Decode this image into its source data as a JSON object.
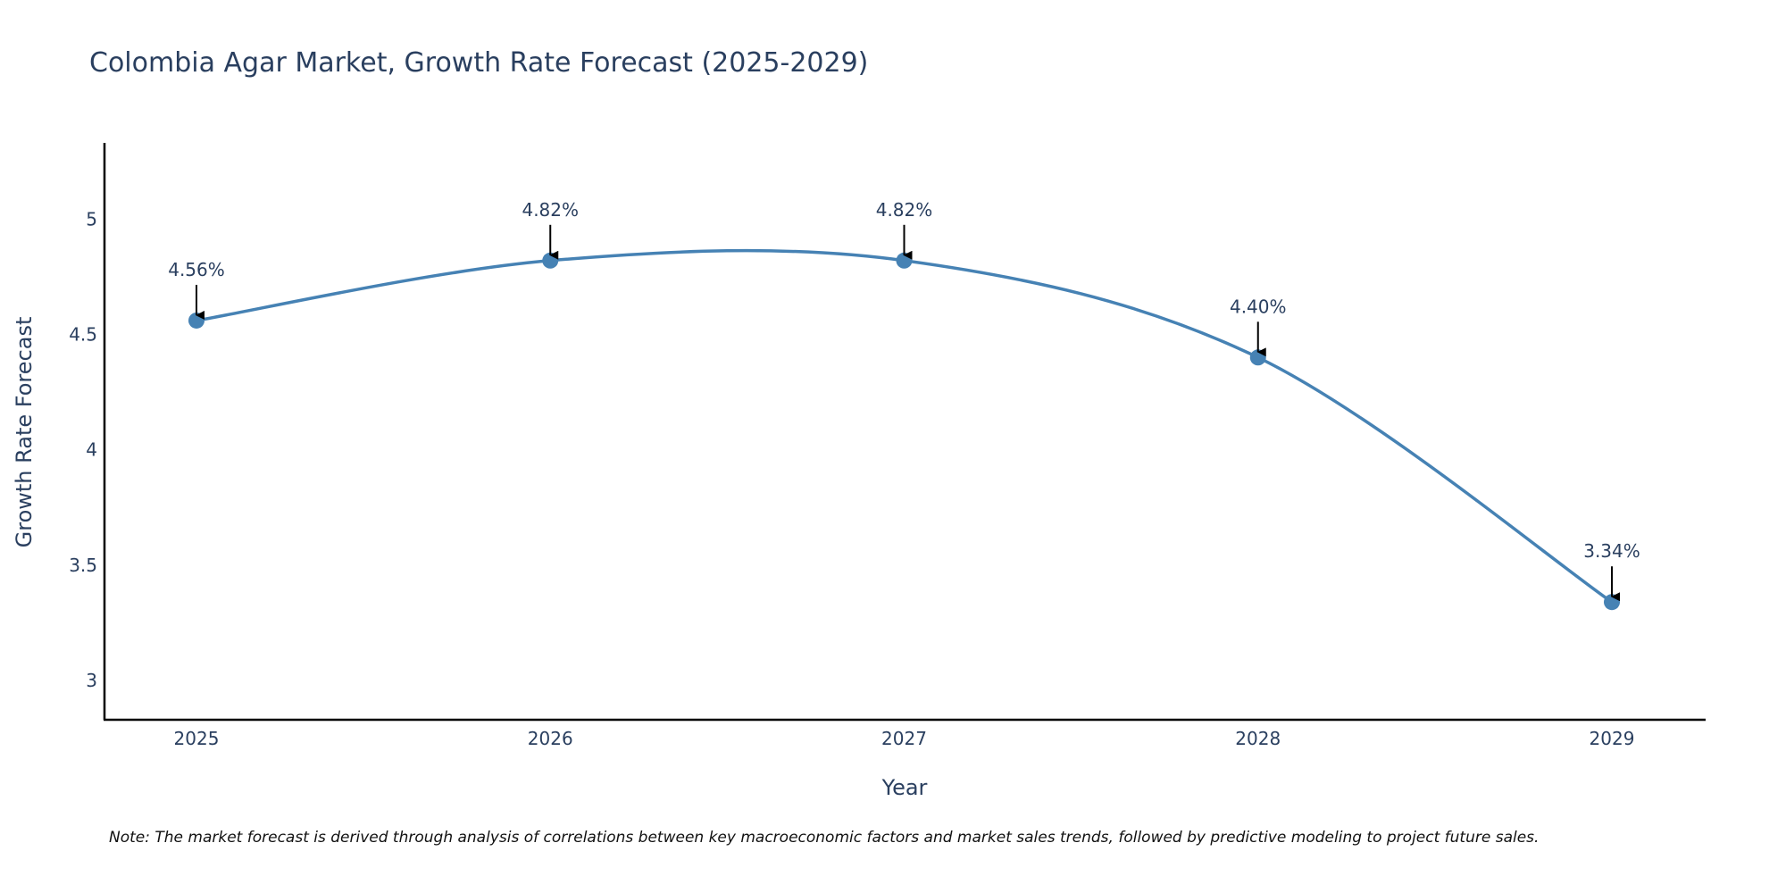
{
  "chart_data": {
    "type": "line",
    "title": "Colombia Agar Market, Growth Rate Forecast (2025-2029)",
    "xlabel": "Year",
    "ylabel": "Growth Rate Forecast",
    "x": [
      "2025",
      "2026",
      "2027",
      "2028",
      "2029"
    ],
    "series": [
      {
        "name": "Growth Rate Forecast",
        "values": [
          4.56,
          4.82,
          4.82,
          4.4,
          3.34
        ],
        "color": "#4682b4"
      }
    ],
    "annotations": [
      "4.56%",
      "4.82%",
      "4.82%",
      "4.40%",
      "3.34%"
    ],
    "y_ticks": [
      "3",
      "3.5",
      "4",
      "4.5",
      "5"
    ],
    "ylim": [
      2.83,
      5.33
    ],
    "grid": false,
    "note": "Note: The market forecast is derived through analysis of correlations between key macroeconomic factors and market sales trends, followed by predictive modeling to project future sales."
  }
}
